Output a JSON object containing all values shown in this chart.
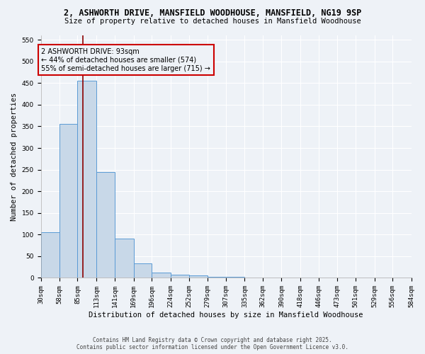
{
  "title1": "2, ASHWORTH DRIVE, MANSFIELD WOODHOUSE, MANSFIELD, NG19 9SP",
  "title2": "Size of property relative to detached houses in Mansfield Woodhouse",
  "xlabel": "Distribution of detached houses by size in Mansfield Woodhouse",
  "ylabel": "Number of detached properties",
  "bin_edges": [
    30,
    58,
    85,
    113,
    141,
    169,
    196,
    224,
    252,
    279,
    307,
    335,
    362,
    390,
    418,
    446,
    473,
    501,
    529,
    556,
    584
  ],
  "bar_heights": [
    105,
    356,
    456,
    245,
    90,
    33,
    13,
    8,
    5,
    3,
    2,
    1,
    1,
    1,
    1,
    1,
    1,
    1,
    0,
    0
  ],
  "bar_color": "#c8d8e8",
  "bar_edge_color": "#5b9bd5",
  "property_size": 93,
  "property_label": "2 ASHWORTH DRIVE: 93sqm",
  "annotation_line1": "← 44% of detached houses are smaller (574)",
  "annotation_line2": "55% of semi-detached houses are larger (715) →",
  "vline_color": "#8b0000",
  "annotation_box_edge": "#cc0000",
  "ylim": [
    0,
    560
  ],
  "yticks": [
    0,
    50,
    100,
    150,
    200,
    250,
    300,
    350,
    400,
    450,
    500,
    550
  ],
  "footer1": "Contains HM Land Registry data © Crown copyright and database right 2025.",
  "footer2": "Contains public sector information licensed under the Open Government Licence v3.0.",
  "bg_color": "#eef2f7",
  "grid_color": "#ffffff",
  "title1_fontsize": 8.5,
  "title2_fontsize": 7.5,
  "ann_fontsize": 7.0,
  "xlabel_fontsize": 7.5,
  "ylabel_fontsize": 7.5,
  "tick_fontsize": 6.5
}
